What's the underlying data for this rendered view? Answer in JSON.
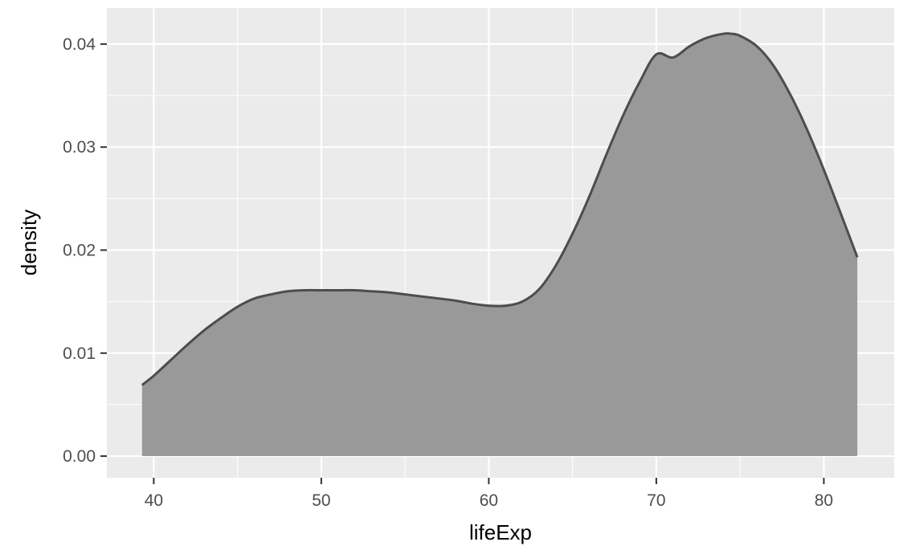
{
  "chart_data": {
    "type": "area",
    "xlabel": "lifeExp",
    "ylabel": "density",
    "xlim": [
      37.2,
      84.2
    ],
    "ylim": [
      -0.0021,
      0.0435
    ],
    "x_ticks": [
      40,
      50,
      60,
      70,
      80
    ],
    "x_tick_labels": [
      "40",
      "50",
      "60",
      "70",
      "80"
    ],
    "y_ticks": [
      0,
      0.01,
      0.02,
      0.03,
      0.04
    ],
    "y_tick_labels": [
      "0.00",
      "0.01",
      "0.02",
      "0.03",
      "0.04"
    ],
    "grid": true,
    "colors": {
      "panel": "#EBEBEB",
      "grid": "#FFFFFF",
      "fill": "#999999",
      "line": "#4D4D4D"
    },
    "series": [
      {
        "x": [
          39.3,
          40,
          41,
          42,
          43,
          44,
          45,
          46,
          47,
          48,
          49,
          50,
          51,
          52,
          53,
          54,
          55,
          56,
          57,
          58,
          59,
          60,
          61,
          62,
          63,
          64,
          65,
          66,
          67,
          68,
          69,
          70,
          71,
          72,
          73,
          74,
          74.5,
          75,
          76,
          77,
          78,
          79,
          80,
          81,
          82
        ],
        "y": [
          0.0069,
          0.0078,
          0.0093,
          0.0108,
          0.0122,
          0.0134,
          0.0145,
          0.0153,
          0.0157,
          0.016,
          0.0161,
          0.0161,
          0.0161,
          0.0161,
          0.016,
          0.0159,
          0.0157,
          0.0155,
          0.0153,
          0.0151,
          0.0148,
          0.0146,
          0.0146,
          0.015,
          0.0162,
          0.0185,
          0.0216,
          0.0252,
          0.0292,
          0.033,
          0.0363,
          0.039,
          0.0387,
          0.0398,
          0.0406,
          0.041,
          0.041,
          0.0408,
          0.0398,
          0.0379,
          0.0351,
          0.0317,
          0.0278,
          0.0236,
          0.0193
        ]
      }
    ]
  }
}
